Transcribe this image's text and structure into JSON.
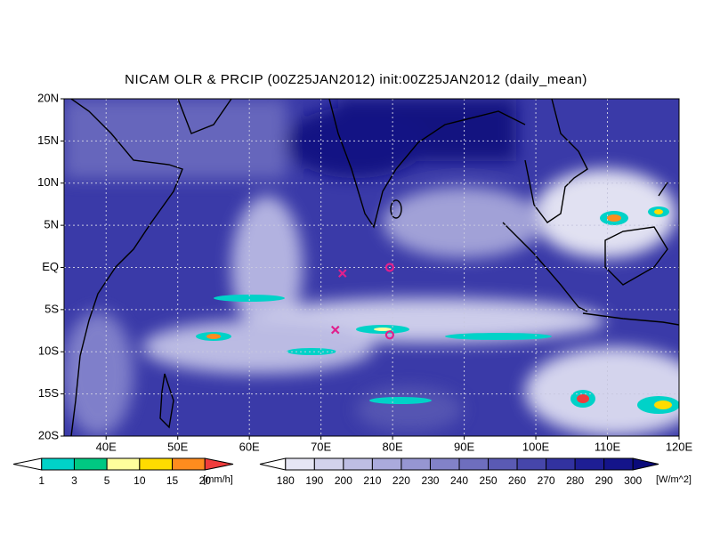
{
  "chart_data": {
    "type": "map",
    "title": "NICAM OLR & PRCIP (00Z25JAN2012) init:00Z25JAN2012 (daily_mean)",
    "xlim": [
      35,
      120
    ],
    "ylim": [
      -20,
      20
    ],
    "xticks": [
      {
        "value": 40,
        "label": "40E"
      },
      {
        "value": 50,
        "label": "50E"
      },
      {
        "value": 60,
        "label": "60E"
      },
      {
        "value": 70,
        "label": "70E"
      },
      {
        "value": 80,
        "label": "80E"
      },
      {
        "value": 90,
        "label": "90E"
      },
      {
        "value": 100,
        "label": "100E"
      },
      {
        "value": 110,
        "label": "110E"
      },
      {
        "value": 120,
        "label": "120E"
      }
    ],
    "yticks": [
      {
        "value": -20,
        "label": "20S"
      },
      {
        "value": -15,
        "label": "15S"
      },
      {
        "value": -10,
        "label": "10S"
      },
      {
        "value": -5,
        "label": "5S"
      },
      {
        "value": 0,
        "label": "EQ"
      },
      {
        "value": 5,
        "label": "5N"
      },
      {
        "value": 10,
        "label": "10N"
      },
      {
        "value": 15,
        "label": "15N"
      },
      {
        "value": 20,
        "label": "20N"
      }
    ],
    "grid": true,
    "markers": [
      {
        "symbol": "x",
        "lon": 73,
        "lat": -0.7,
        "color": "#e0208c"
      },
      {
        "symbol": "x",
        "lon": 72,
        "lat": -7.4,
        "color": "#e0208c"
      },
      {
        "symbol": "o",
        "lon": 79.6,
        "lat": 0,
        "color": "#e0208c"
      },
      {
        "symbol": "o",
        "lon": 79.6,
        "lat": -8,
        "color": "#e0208c"
      }
    ],
    "colorbars": [
      {
        "levels": [
          1,
          3,
          5,
          10,
          15,
          20
        ],
        "unit": "[mm/h]",
        "colors": [
          "#ffffff",
          "#00d2c8",
          "#00c882",
          "#ffff9c",
          "#ffdc00",
          "#ff8c1e",
          "#f03c3c"
        ]
      },
      {
        "levels": [
          180,
          190,
          200,
          210,
          220,
          230,
          240,
          250,
          260,
          270,
          280,
          290,
          300
        ],
        "unit": "[W/m^2]",
        "colors": [
          "#ffffff",
          "#e6e6f4",
          "#d2d2ec",
          "#bebee4",
          "#aaaadc",
          "#9696d2",
          "#8282c8",
          "#6e6ebe",
          "#5a5ab4",
          "#4646aa",
          "#3232a0",
          "#1e1e94",
          "#14148a",
          "#0a0a7a"
        ]
      }
    ]
  }
}
